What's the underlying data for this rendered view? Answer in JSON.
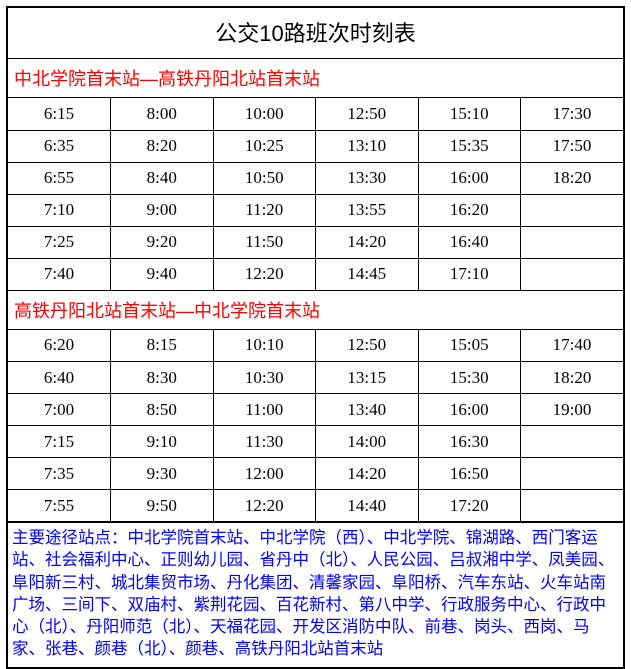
{
  "title": "公交10路班次时刻表",
  "route1": {
    "header": "中北学院首末站—高铁丹阳北站首末站",
    "header_color": "#ff0000",
    "rows": [
      [
        "6:15",
        "8:00",
        "10:00",
        "12:50",
        "15:10",
        "17:30"
      ],
      [
        "6:35",
        "8:20",
        "10:25",
        "13:10",
        "15:35",
        "17:50"
      ],
      [
        "6:55",
        "8:40",
        "10:50",
        "13:30",
        "16:00",
        "18:20"
      ],
      [
        "7:10",
        "9:00",
        "11:20",
        "13:55",
        "16:20",
        ""
      ],
      [
        "7:25",
        "9:20",
        "11:50",
        "14:20",
        "16:40",
        ""
      ],
      [
        "7:40",
        "9:40",
        "12:20",
        "14:45",
        "17:10",
        ""
      ]
    ]
  },
  "route2": {
    "header": "高铁丹阳北站首末站—中北学院首末站",
    "header_color": "#ff0000",
    "rows": [
      [
        "6:20",
        "8:15",
        "10:10",
        "12:50",
        "15:05",
        "17:40"
      ],
      [
        "6:40",
        "8:30",
        "10:30",
        "13:15",
        "15:30",
        "18:20"
      ],
      [
        "7:00",
        "8:50",
        "11:00",
        "13:40",
        "16:00",
        "19:00"
      ],
      [
        "7:15",
        "9:10",
        "11:30",
        "14:00",
        "16:30",
        ""
      ],
      [
        "7:35",
        "9:30",
        "12:00",
        "14:20",
        "16:50",
        ""
      ],
      [
        "7:55",
        "9:50",
        "12:20",
        "14:40",
        "17:20",
        ""
      ]
    ]
  },
  "notes": {
    "text": "主要途径站点：中北学院首末站、中北学院（西）、中北学院、锦湖路、西门客运站、社会福利中心、正则幼儿园、省丹中（北）、人民公园、吕叔湘中学、凤美园、阜阳新三村、城北集贸市场、丹化集团、清馨家园、阜阳桥、汽车东站、火车站南广场、三间下、双庙村、紫荆花园、百花新村、第八中学、行政服务中心、行政中心（北）、丹阳师范（北）、天福花园、开发区消防中队、前巷、岗头、西岗、马家、张巷、颜巷（北）、颜巷、高铁丹阳北站首末站",
    "color": "#0000ff"
  },
  "colors": {
    "border": "#000000",
    "background": "#ffffff"
  }
}
